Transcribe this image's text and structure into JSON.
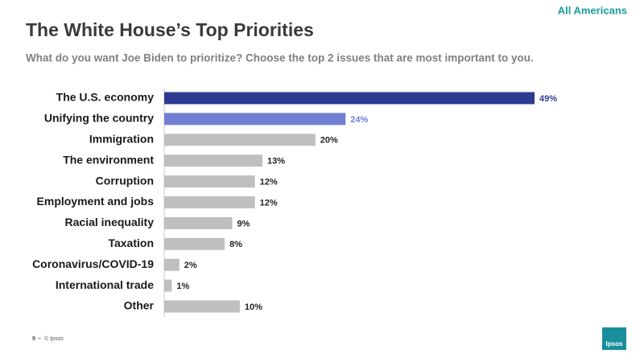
{
  "header_tag": "All Americans",
  "chart_data": {
    "type": "barh",
    "title": "The White House’s Top Priorities",
    "subtitle": "What do you want Joe Biden to prioritize? Choose the top 2 issues that are most important to you.",
    "categories": [
      "The U.S. economy",
      "Unifying the country",
      "Immigration",
      "The environment",
      "Corruption",
      "Employment and jobs",
      "Racial inequality",
      "Taxation",
      "Coronavirus/COVID-19",
      "International trade",
      "Other"
    ],
    "values": [
      49,
      24,
      20,
      13,
      12,
      12,
      9,
      8,
      2,
      1,
      10
    ],
    "value_labels": [
      "49%",
      "24%",
      "20%",
      "13%",
      "12%",
      "12%",
      "9%",
      "8%",
      "2%",
      "1%",
      "10%"
    ],
    "colors": [
      "#2e3a8f",
      "#7080d4",
      "#bfbfbf",
      "#bfbfbf",
      "#bfbfbf",
      "#bfbfbf",
      "#bfbfbf",
      "#bfbfbf",
      "#bfbfbf",
      "#bfbfbf",
      "#bfbfbf"
    ],
    "value_label_colors": [
      "#2e3a8f",
      "#7080d4",
      "#222222",
      "#222222",
      "#222222",
      "#222222",
      "#222222",
      "#222222",
      "#222222",
      "#222222",
      "#222222"
    ]
  },
  "footer": {
    "page": "9",
    "copyright": "© Ipsos"
  },
  "logo": "Ipsos"
}
